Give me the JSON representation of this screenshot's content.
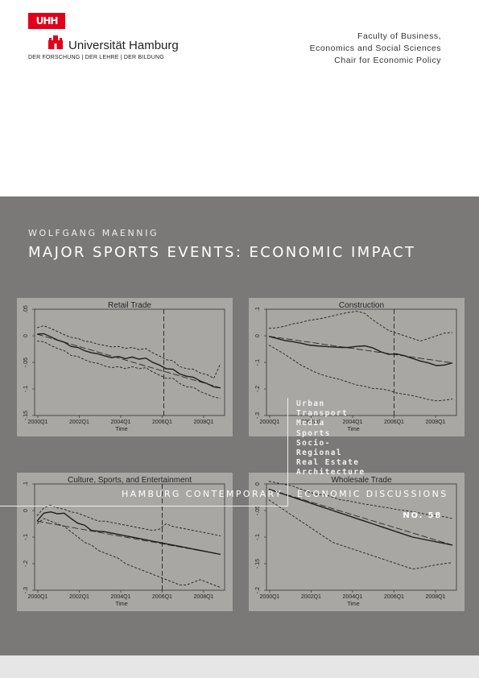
{
  "header": {
    "logo_text": "UHH",
    "university": "Universität Hamburg",
    "tagline": "DER FORSCHUNG | DER LEHRE | DER BILDUNG",
    "faculty_lines": [
      "Faculty of Business,",
      "Economics and Social Sciences",
      "Chair for Economic Policy"
    ]
  },
  "cover": {
    "author": "WOLFGANG MAENNIG",
    "title": "MAJOR SPORTS EVENTS: ECONOMIC IMPACT",
    "topics": [
      "Urban",
      "Transport",
      "Media",
      "Sports",
      "Socio-",
      "Regional",
      "Real Estate",
      "Architecture"
    ],
    "series_left": "HAMBURG CONTEMPORARY",
    "series_right": "ECONOMIC DISCUSSIONS",
    "number": "NO. 58"
  },
  "chart_data": [
    {
      "type": "line",
      "title": "Retail Trade",
      "xlabel": "Time",
      "ylabel": "",
      "xticks": [
        "2000Q1",
        "2002Q1",
        "2004Q1",
        "2006Q1",
        "2008Q1"
      ],
      "yticks": [
        "-.15",
        "-.1",
        "-.05",
        "0",
        ".05"
      ],
      "ylim": [
        -0.15,
        0.05
      ],
      "event_marker": "2006Q2",
      "series": [
        {
          "values": [
            0.003,
            0.004,
            -0.002,
            -0.008,
            -0.012,
            -0.02,
            -0.022,
            -0.028,
            -0.032,
            -0.034,
            -0.038,
            -0.041,
            -0.039,
            -0.043,
            -0.04,
            -0.044,
            -0.042,
            -0.05,
            -0.055,
            -0.062,
            -0.063,
            -0.072,
            -0.076,
            -0.078,
            -0.085,
            -0.09,
            -0.096,
            -0.098
          ]
        },
        {
          "values": [
            0.015,
            0.019,
            0.014,
            0.008,
            0.002,
            -0.003,
            -0.005,
            -0.01,
            -0.012,
            -0.016,
            -0.018,
            -0.021,
            -0.02,
            -0.024,
            -0.022,
            -0.026,
            -0.024,
            -0.032,
            -0.038,
            -0.045,
            -0.047,
            -0.058,
            -0.062,
            -0.063,
            -0.07,
            -0.073,
            -0.08,
            -0.052
          ]
        },
        {
          "values": [
            -0.01,
            -0.011,
            -0.018,
            -0.024,
            -0.028,
            -0.037,
            -0.039,
            -0.045,
            -0.05,
            -0.052,
            -0.057,
            -0.06,
            -0.058,
            -0.062,
            -0.058,
            -0.062,
            -0.06,
            -0.068,
            -0.074,
            -0.08,
            -0.08,
            -0.09,
            -0.096,
            -0.097,
            -0.105,
            -0.11,
            -0.115,
            -0.118
          ]
        }
      ]
    },
    {
      "type": "line",
      "title": "Construction",
      "xlabel": "Time",
      "ylabel": "",
      "xticks": [
        "2000Q1",
        "2002Q1",
        "2004Q1",
        "2006Q1",
        "2008Q1"
      ],
      "yticks": [
        "-.3",
        "-.2",
        "-.1",
        "0",
        ".1"
      ],
      "ylim": [
        -0.3,
        0.1
      ],
      "event_marker": "2006Q1",
      "series": [
        {
          "values": [
            -0.002,
            -0.01,
            -0.018,
            -0.022,
            -0.028,
            -0.035,
            -0.038,
            -0.04,
            -0.042,
            -0.044,
            -0.044,
            -0.04,
            -0.038,
            -0.045,
            -0.06,
            -0.07,
            -0.068,
            -0.075,
            -0.085,
            -0.095,
            -0.102,
            -0.112,
            -0.11,
            -0.102
          ]
        },
        {
          "values": [
            0.028,
            0.03,
            0.036,
            0.045,
            0.05,
            0.058,
            0.062,
            0.068,
            0.075,
            0.082,
            0.088,
            0.092,
            0.085,
            0.06,
            0.04,
            0.02,
            0.01,
            0.0,
            -0.01,
            -0.02,
            -0.01,
            0.0,
            0.01,
            0.012
          ]
        },
        {
          "values": [
            -0.035,
            -0.052,
            -0.07,
            -0.09,
            -0.11,
            -0.125,
            -0.14,
            -0.15,
            -0.158,
            -0.165,
            -0.175,
            -0.185,
            -0.19,
            -0.198,
            -0.2,
            -0.205,
            -0.215,
            -0.22,
            -0.225,
            -0.232,
            -0.24,
            -0.245,
            -0.242,
            -0.238
          ]
        }
      ]
    },
    {
      "type": "line",
      "title": "Culture, Sports, and Entertainment",
      "xlabel": "Time",
      "ylabel": "",
      "xticks": [
        "2000Q1",
        "2002Q1",
        "2004Q1",
        "2006Q1",
        "2008Q1"
      ],
      "yticks": [
        "-.3",
        "-.2",
        "-.1",
        "0",
        ".1"
      ],
      "ylim": [
        -0.3,
        0.1
      ],
      "event_marker": "2006Q1",
      "series": [
        {
          "values": [
            -0.04,
            -0.01,
            -0.005,
            -0.012,
            -0.01,
            -0.03,
            -0.048,
            -0.055,
            -0.075,
            -0.078,
            -0.08,
            -0.085,
            -0.09,
            -0.095,
            -0.1,
            -0.105,
            -0.11,
            -0.115,
            -0.12,
            -0.125,
            -0.13,
            -0.135,
            -0.14,
            -0.145,
            -0.15,
            -0.155,
            -0.16,
            -0.165
          ]
        },
        {
          "values": [
            -0.02,
            0.01,
            0.02,
            0.01,
            0.005,
            -0.005,
            -0.01,
            -0.02,
            -0.03,
            -0.04,
            -0.04,
            -0.045,
            -0.05,
            -0.055,
            -0.06,
            -0.065,
            -0.07,
            -0.075,
            -0.07,
            -0.05,
            -0.06,
            -0.065,
            -0.07,
            -0.075,
            -0.08,
            -0.085,
            -0.09,
            -0.095
          ]
        },
        {
          "values": [
            -0.05,
            -0.03,
            -0.04,
            -0.05,
            -0.06,
            -0.08,
            -0.1,
            -0.12,
            -0.13,
            -0.15,
            -0.16,
            -0.17,
            -0.18,
            -0.2,
            -0.21,
            -0.22,
            -0.23,
            -0.24,
            -0.25,
            -0.26,
            -0.27,
            -0.28,
            -0.28,
            -0.27,
            -0.26,
            -0.27,
            -0.28,
            -0.29
          ]
        }
      ]
    },
    {
      "type": "line",
      "title": "Wholesale Trade",
      "xlabel": "Time",
      "ylabel": "",
      "xticks": [
        "2000Q1",
        "2002Q1",
        "2004Q1",
        "2006Q1",
        "2008Q1"
      ],
      "yticks": [
        "-.2",
        "-.15",
        "-.1",
        "-.05",
        "0"
      ],
      "ylim": [
        -0.2,
        0.0
      ],
      "event_marker": "",
      "series": [
        {
          "values": [
            -0.01,
            -0.015,
            -0.02,
            -0.025,
            -0.03,
            -0.035,
            -0.04,
            -0.045,
            -0.05,
            -0.055,
            -0.06,
            -0.065,
            -0.07,
            -0.075,
            -0.08,
            -0.085,
            -0.09,
            -0.095,
            -0.1,
            -0.103,
            -0.106,
            -0.109,
            -0.112,
            -0.115
          ]
        },
        {
          "values": [
            0.005,
            0.002,
            -0.001,
            -0.004,
            -0.01,
            -0.015,
            -0.02,
            -0.02,
            -0.025,
            -0.03,
            -0.032,
            -0.035,
            -0.038,
            -0.04,
            -0.043,
            -0.045,
            -0.048,
            -0.05,
            -0.052,
            -0.055,
            -0.058,
            -0.06,
            -0.062,
            -0.065
          ]
        },
        {
          "values": [
            -0.03,
            -0.04,
            -0.05,
            -0.06,
            -0.07,
            -0.08,
            -0.09,
            -0.1,
            -0.11,
            -0.115,
            -0.12,
            -0.125,
            -0.13,
            -0.135,
            -0.14,
            -0.145,
            -0.15,
            -0.155,
            -0.16,
            -0.158,
            -0.155,
            -0.152,
            -0.15,
            -0.148
          ]
        }
      ]
    }
  ]
}
